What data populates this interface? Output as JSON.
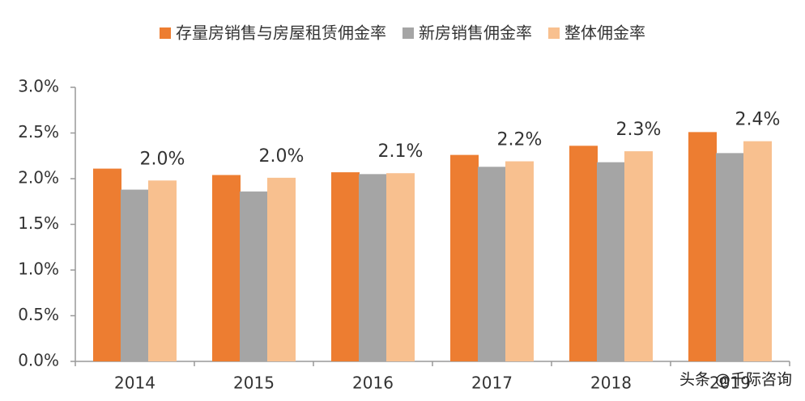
{
  "chart_data": {
    "type": "bar",
    "categories": [
      "2014",
      "2015",
      "2016",
      "2017",
      "2018",
      "2019"
    ],
    "series": [
      {
        "name": "存量房销售与房屋租赁佣金率",
        "color": "#ed7d31",
        "values": [
          2.11,
          2.04,
          2.07,
          2.26,
          2.36,
          2.51
        ]
      },
      {
        "name": "新房销售佣金率",
        "color": "#a5a5a5",
        "values": [
          1.88,
          1.86,
          2.05,
          2.13,
          2.18,
          2.28
        ]
      },
      {
        "name": "整体佣金率",
        "color": "#f8c08f",
        "values": [
          1.98,
          2.01,
          2.06,
          2.19,
          2.3,
          2.41
        ],
        "value_labels": [
          "2.0%",
          "2.0%",
          "2.1%",
          "2.2%",
          "2.3%",
          "2.4%"
        ]
      }
    ],
    "ylim": [
      0,
      3
    ],
    "yticks": [
      {
        "value": 0,
        "label": "0.0%"
      },
      {
        "value": 0.5,
        "label": "0.5%"
      },
      {
        "value": 1,
        "label": "1.0%"
      },
      {
        "value": 1.5,
        "label": "1.5%"
      },
      {
        "value": 2,
        "label": "2.0%"
      },
      {
        "value": 2.5,
        "label": "2.5%"
      },
      {
        "value": 3,
        "label": "3.0%"
      }
    ],
    "legend": "top",
    "watermark": "头条 @千际咨询"
  }
}
